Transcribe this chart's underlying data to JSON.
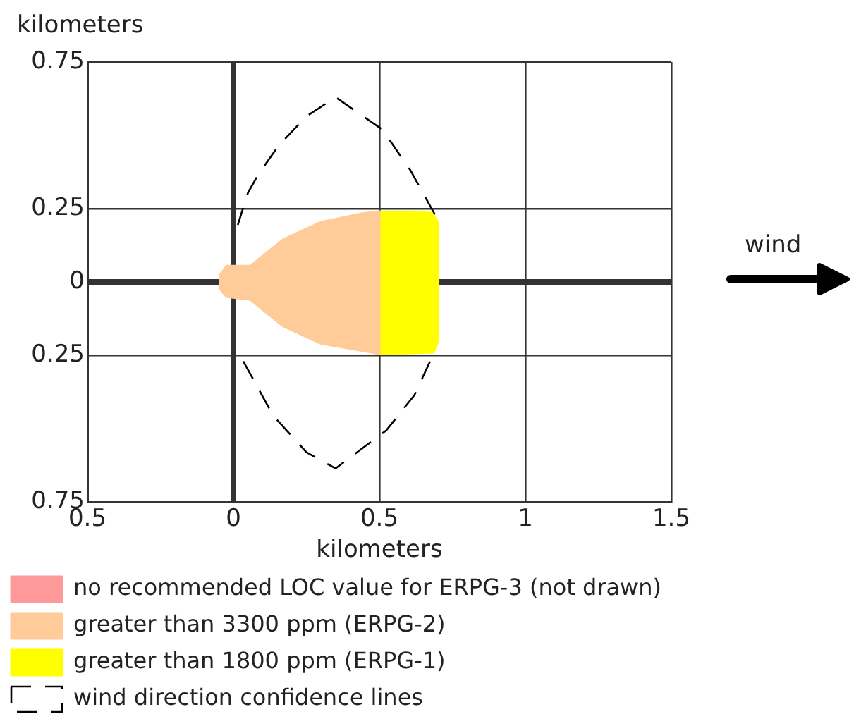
{
  "chart_data": {
    "type": "area",
    "xlabel": "kilometers",
    "ylabel": "kilometers",
    "xlim": [
      -0.5,
      1.5
    ],
    "xticks": [
      {
        "value": -0.5,
        "label": "0.5"
      },
      0,
      0.5,
      1,
      1.5
    ],
    "ylim": [
      -0.75,
      0.75
    ],
    "yticks": [
      {
        "value": -0.75,
        "label": "0.75"
      },
      {
        "value": -0.25,
        "label": "0.25"
      },
      0,
      0.25,
      0.75
    ],
    "grid": true,
    "legend": "bottom",
    "annotations": [
      "wind"
    ],
    "series": [
      {
        "name": "no recommended LOC value for ERPG-3 (not drawn)",
        "type": "area",
        "color": "#ff9999"
      },
      {
        "name": "greater than 3300 ppm (ERPG-2)",
        "type": "area",
        "color": "#ffcc99",
        "x": [
          -0.049,
          -0.024,
          0.058,
          0.107,
          0.17,
          0.3,
          0.447,
          0.5,
          0.5,
          0.447,
          0.3,
          0.17,
          0.107,
          0.058,
          -0.024,
          -0.049
        ],
        "values": [
          0.02,
          0.055,
          0.055,
          0.095,
          0.145,
          0.205,
          0.235,
          0.24,
          -0.245,
          -0.235,
          -0.21,
          -0.15,
          -0.1,
          -0.06,
          -0.05,
          -0.02
        ]
      },
      {
        "name": "greater than 1800 ppm (ERPG-1)",
        "type": "area",
        "color": "#ffff00",
        "x": [
          0.5,
          0.62,
          0.68,
          0.7,
          0.7,
          0.685,
          0.5
        ],
        "values": [
          0.24,
          0.24,
          0.235,
          0.205,
          -0.205,
          -0.24,
          -0.245
        ]
      },
      {
        "name": "wind direction confidence lines",
        "type": "line",
        "line_style": "dashed",
        "color": "#000000",
        "x": [
          0.034,
          0.136,
          0.25,
          0.35,
          0.524,
          0.62,
          0.69
        ],
        "values": [
          -0.27,
          -0.455,
          -0.58,
          -0.635,
          -0.505,
          -0.385,
          -0.235
        ]
      },
      {
        "type": "line",
        "line_style": "dashed",
        "color": "#000000",
        "x": [
          0.69,
          0.607,
          0.51,
          0.35,
          0.25,
          0.155,
          0.087,
          0.05,
          0.015
        ],
        "values": [
          0.23,
          0.38,
          0.52,
          0.63,
          0.565,
          0.465,
          0.37,
          0.305,
          0.195
        ]
      }
    ]
  }
}
